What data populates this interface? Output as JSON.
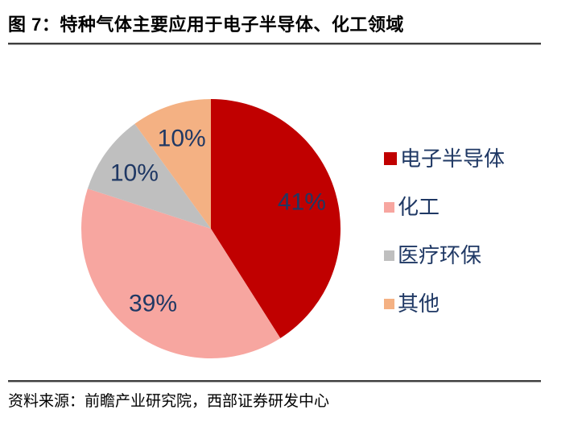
{
  "header": {
    "title": "图 7：特种气体主要应用于电子半导体、化工领域"
  },
  "footer": {
    "source": "资料来源：前瞻产业研究院，西部证券研发中心"
  },
  "chart_data": {
    "type": "pie",
    "title": "特种气体主要应用于电子半导体、化工领域",
    "categories": [
      "电子半导体",
      "化工",
      "医疗环保",
      "其他"
    ],
    "values": [
      41,
      39,
      10,
      10
    ],
    "labels": [
      "41%",
      "39%",
      "10%",
      "10%"
    ],
    "unit": "%",
    "colors": [
      "#C00000",
      "#F7A6A0",
      "#BFBFBF",
      "#F4B183"
    ],
    "label_color": "#1F3864",
    "start_angle_deg": 0,
    "direction": "clockwise",
    "legend_position": "right"
  }
}
